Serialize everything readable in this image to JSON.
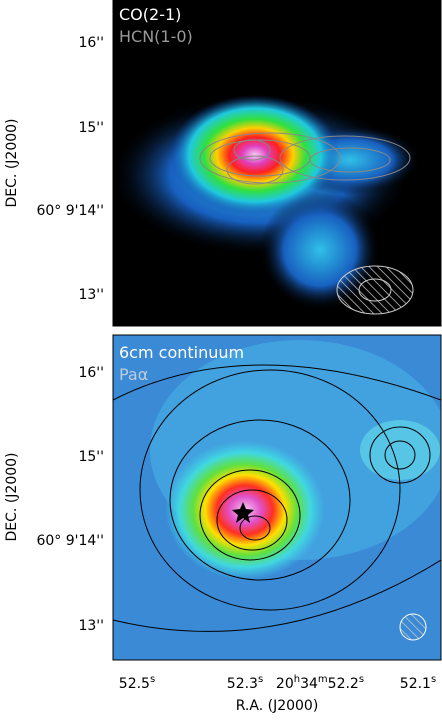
{
  "panels": [
    {
      "labels": [
        "CO(2-1)",
        "HCN(1-0)"
      ],
      "y_ticks": [
        "16''",
        "15''",
        "60° 9'14''",
        "13''"
      ]
    },
    {
      "labels": [
        "6cm continuum",
        "Paα"
      ],
      "y_ticks": [
        "16''",
        "15''",
        "60° 9'14''",
        "13''"
      ]
    }
  ],
  "y_axis_title": "DEC. (J2000)",
  "x_axis_title": "R.A. (J2000)",
  "x_ticks": [
    [
      "52.5",
      "s"
    ],
    [
      "52.3",
      "s"
    ],
    [
      "20",
      "h",
      "34",
      "m",
      "52.2",
      "s"
    ],
    [
      "52.1",
      "s"
    ]
  ]
}
